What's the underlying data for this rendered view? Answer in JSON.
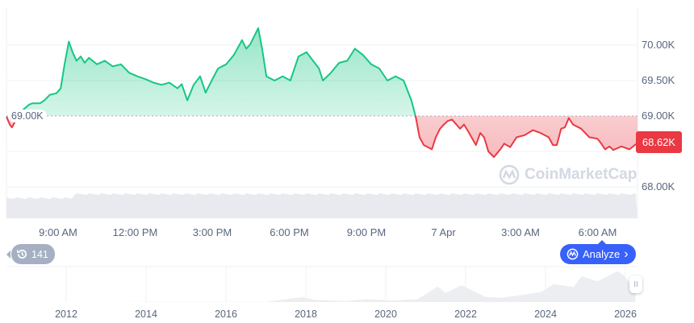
{
  "chart_data": {
    "type": "area",
    "title": "",
    "xlabel": "",
    "ylabel": "",
    "y_axis_position": "right",
    "y_tick_labels": [
      "70.00K",
      "69.50K",
      "69.00K",
      "68.00K"
    ],
    "y_ticks": [
      70.0,
      69.5,
      69.0,
      68.5,
      68.0
    ],
    "ylim": [
      67.55,
      70.5
    ],
    "x_tick_labels": [
      "9:00 AM",
      "12:00 PM",
      "3:00 PM",
      "6:00 PM",
      "9:00 PM",
      "7 Apr",
      "3:00 AM",
      "6:00 AM"
    ],
    "reference_price": 69.0,
    "reference_label": "69.00K",
    "last_price_label": "68.62K",
    "grid": true,
    "colors": {
      "above": "#16c784",
      "below": "#ea3943",
      "volume": "#e8eaef"
    },
    "series": [
      {
        "unit": "K USD",
        "points": [
          [
            "07:00",
            68.99
          ],
          [
            "07:07",
            68.88
          ],
          [
            "07:12",
            68.84
          ],
          [
            "07:31",
            69.05
          ],
          [
            "07:52",
            69.16
          ],
          [
            "08:00",
            69.18
          ],
          [
            "08:18",
            69.18
          ],
          [
            "08:28",
            69.22
          ],
          [
            "08:41",
            69.3
          ],
          [
            "08:56",
            69.32
          ],
          [
            "09:06",
            69.39
          ],
          [
            "09:15",
            69.73
          ],
          [
            "09:25",
            70.05
          ],
          [
            "09:34",
            69.9
          ],
          [
            "09:43",
            69.78
          ],
          [
            "09:53",
            69.84
          ],
          [
            "10:02",
            69.75
          ],
          [
            "10:12",
            69.82
          ],
          [
            "10:31",
            69.73
          ],
          [
            "10:49",
            69.78
          ],
          [
            "11:08",
            69.7
          ],
          [
            "11:27",
            69.73
          ],
          [
            "11:46",
            69.61
          ],
          [
            "12:05",
            69.56
          ],
          [
            "12:24",
            69.52
          ],
          [
            "12:43",
            69.47
          ],
          [
            "13:02",
            69.44
          ],
          [
            "13:20",
            69.47
          ],
          [
            "13:39",
            69.39
          ],
          [
            "13:49",
            69.45
          ],
          [
            "14:02",
            69.22
          ],
          [
            "14:17",
            69.44
          ],
          [
            "14:32",
            69.56
          ],
          [
            "14:45",
            69.33
          ],
          [
            "14:59",
            69.5
          ],
          [
            "15:14",
            69.67
          ],
          [
            "15:33",
            69.73
          ],
          [
            "15:51",
            69.86
          ],
          [
            "16:10",
            70.07
          ],
          [
            "16:20",
            69.95
          ],
          [
            "16:29",
            70.01
          ],
          [
            "16:48",
            70.24
          ],
          [
            "16:57",
            69.95
          ],
          [
            "17:07",
            69.56
          ],
          [
            "17:26",
            69.5
          ],
          [
            "17:45",
            69.56
          ],
          [
            "18:03",
            69.5
          ],
          [
            "18:22",
            69.84
          ],
          [
            "18:41",
            69.9
          ],
          [
            "18:56",
            69.78
          ],
          [
            "19:10",
            69.67
          ],
          [
            "19:19",
            69.5
          ],
          [
            "19:38",
            69.61
          ],
          [
            "19:57",
            69.75
          ],
          [
            "20:16",
            69.78
          ],
          [
            "20:34",
            69.95
          ],
          [
            "20:53",
            69.86
          ],
          [
            "21:12",
            69.73
          ],
          [
            "21:31",
            69.67
          ],
          [
            "21:50",
            69.5
          ],
          [
            "22:09",
            69.56
          ],
          [
            "22:28",
            69.5
          ],
          [
            "22:46",
            69.22
          ],
          [
            "22:56",
            68.99
          ],
          [
            "23:05",
            68.7
          ],
          [
            "23:15",
            68.59
          ],
          [
            "23:34",
            68.53
          ],
          [
            "23:43",
            68.7
          ],
          [
            "23:53",
            68.82
          ],
          [
            "00:02",
            68.88
          ],
          [
            "00:11",
            68.93
          ],
          [
            "00:21",
            68.95
          ],
          [
            "00:40",
            68.82
          ],
          [
            "00:49",
            68.88
          ],
          [
            "00:59",
            68.78
          ],
          [
            "01:17",
            68.59
          ],
          [
            "01:27",
            68.76
          ],
          [
            "01:36",
            68.7
          ],
          [
            "01:46",
            68.5
          ],
          [
            "01:59",
            68.42
          ],
          [
            "02:14",
            68.53
          ],
          [
            "02:23",
            68.61
          ],
          [
            "02:37",
            68.56
          ],
          [
            "02:52",
            68.7
          ],
          [
            "03:11",
            68.73
          ],
          [
            "03:30",
            68.8
          ],
          [
            "03:48",
            68.76
          ],
          [
            "04:07",
            68.7
          ],
          [
            "04:17",
            68.59
          ],
          [
            "04:26",
            68.59
          ],
          [
            "04:36",
            68.82
          ],
          [
            "04:45",
            68.84
          ],
          [
            "04:54",
            68.97
          ],
          [
            "05:04",
            68.88
          ],
          [
            "05:23",
            68.82
          ],
          [
            "05:42",
            68.7
          ],
          [
            "06:01",
            68.68
          ],
          [
            "06:10",
            68.61
          ],
          [
            "06:19",
            68.53
          ],
          [
            "06:29",
            68.57
          ],
          [
            "06:38",
            68.52
          ],
          [
            "06:57",
            68.57
          ],
          [
            "07:16",
            68.53
          ],
          [
            "07:20",
            68.62
          ]
        ]
      }
    ],
    "navigator": {
      "x_tick_labels": [
        "2012",
        "2014",
        "2016",
        "2018",
        "2020",
        "2022",
        "2024",
        "2026"
      ],
      "points": [
        [
          2010.6,
          0
        ],
        [
          2013.9,
          0.5
        ],
        [
          2017.0,
          1
        ],
        [
          2017.9,
          19
        ],
        [
          2018.2,
          9
        ],
        [
          2019.0,
          4
        ],
        [
          2019.5,
          11
        ],
        [
          2020.2,
          6
        ],
        [
          2020.8,
          12
        ],
        [
          2021.3,
          60
        ],
        [
          2021.5,
          35
        ],
        [
          2021.9,
          65
        ],
        [
          2022.5,
          20
        ],
        [
          2022.9,
          17
        ],
        [
          2023.5,
          30
        ],
        [
          2023.9,
          40
        ],
        [
          2024.2,
          70
        ],
        [
          2024.7,
          58
        ],
        [
          2024.9,
          100
        ],
        [
          2025.3,
          80
        ],
        [
          2025.8,
          120
        ],
        [
          2025.95,
          105
        ],
        [
          2026.1,
          75
        ],
        [
          2026.25,
          69
        ]
      ]
    }
  },
  "watermark": "CoinMarketCap",
  "history_button": {
    "icon": "history-icon",
    "label": "141"
  },
  "analyze_button": {
    "icon": "cmc-logo-icon",
    "label": "Analyze",
    "chevron": "›"
  },
  "navigator_handle": "II"
}
